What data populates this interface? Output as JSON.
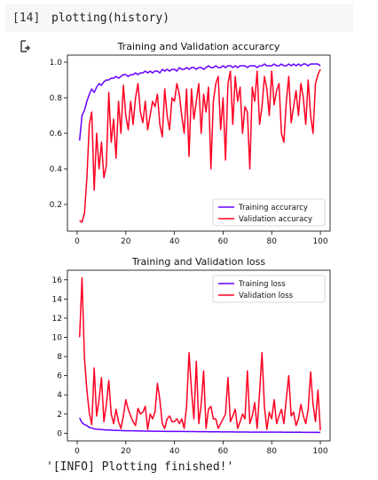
{
  "cell": {
    "prompt": "[14]",
    "code": "plotting(history)",
    "output_text": "'[INFO] Plotting finished!'"
  },
  "colors": {
    "train": "#6600ff",
    "val": "#ff0022"
  },
  "chart_data": [
    {
      "type": "line",
      "title": "Training and Validation accurarcy",
      "xlabel": "",
      "ylabel": "",
      "xlim": [
        -4,
        104
      ],
      "ylim": [
        0.05,
        1.04
      ],
      "xticks": [
        0,
        20,
        40,
        60,
        80,
        100
      ],
      "yticks": [
        0.2,
        0.4,
        0.6,
        0.8,
        1.0
      ],
      "xtick_labels": [
        "0",
        "20",
        "40",
        "60",
        "80",
        "100"
      ],
      "ytick_labels": [
        "0.2",
        "0.4",
        "0.6",
        "0.8",
        "1.0"
      ],
      "legend": "lower-right",
      "x_start": 1,
      "series": [
        {
          "name": "Training accurarcy",
          "color": "#6600ff",
          "values": [
            0.56,
            0.7,
            0.73,
            0.78,
            0.82,
            0.85,
            0.83,
            0.86,
            0.88,
            0.87,
            0.89,
            0.9,
            0.9,
            0.91,
            0.91,
            0.92,
            0.91,
            0.92,
            0.93,
            0.93,
            0.92,
            0.93,
            0.93,
            0.94,
            0.93,
            0.94,
            0.94,
            0.95,
            0.94,
            0.95,
            0.94,
            0.95,
            0.95,
            0.94,
            0.96,
            0.95,
            0.96,
            0.95,
            0.96,
            0.96,
            0.95,
            0.97,
            0.96,
            0.96,
            0.97,
            0.96,
            0.97,
            0.97,
            0.96,
            0.97,
            0.97,
            0.96,
            0.97,
            0.98,
            0.97,
            0.97,
            0.98,
            0.97,
            0.97,
            0.98,
            0.97,
            0.98,
            0.98,
            0.97,
            0.98,
            0.97,
            0.98,
            0.98,
            0.98,
            0.97,
            0.98,
            0.98,
            0.98,
            0.97,
            0.98,
            0.98,
            0.99,
            0.98,
            0.98,
            0.98,
            0.99,
            0.98,
            0.98,
            0.99,
            0.98,
            0.98,
            0.99,
            0.98,
            0.99,
            0.98,
            0.99,
            0.98,
            0.99,
            0.99,
            0.98,
            0.99,
            0.99,
            0.99,
            0.99,
            0.98
          ]
        },
        {
          "name": "Validation accuracy",
          "color": "#ff0022",
          "values": [
            0.11,
            0.1,
            0.15,
            0.35,
            0.65,
            0.72,
            0.28,
            0.6,
            0.4,
            0.55,
            0.35,
            0.42,
            0.83,
            0.55,
            0.68,
            0.46,
            0.78,
            0.6,
            0.87,
            0.7,
            0.62,
            0.78,
            0.65,
            0.8,
            0.88,
            0.72,
            0.66,
            0.78,
            0.62,
            0.7,
            0.78,
            0.75,
            0.82,
            0.65,
            0.58,
            0.85,
            0.7,
            0.62,
            0.8,
            0.78,
            0.88,
            0.82,
            0.7,
            0.6,
            0.85,
            0.47,
            0.85,
            0.68,
            0.78,
            0.88,
            0.6,
            0.82,
            0.72,
            0.86,
            0.4,
            0.78,
            0.88,
            0.92,
            0.62,
            0.8,
            0.45,
            0.88,
            0.95,
            0.65,
            0.92,
            0.78,
            0.86,
            0.6,
            0.75,
            0.72,
            0.4,
            0.86,
            0.78,
            0.95,
            0.65,
            0.75,
            0.92,
            0.85,
            0.7,
            0.95,
            0.76,
            0.84,
            0.88,
            0.6,
            0.55,
            0.78,
            0.92,
            0.66,
            0.75,
            0.84,
            0.7,
            0.88,
            0.8,
            0.65,
            0.9,
            0.7,
            0.6,
            0.88,
            0.93,
            0.96
          ]
        }
      ]
    },
    {
      "type": "line",
      "title": "Training and Validation loss",
      "xlabel": "",
      "ylabel": "",
      "xlim": [
        -4,
        104
      ],
      "ylim": [
        -0.8,
        17.0
      ],
      "xticks": [
        0,
        20,
        40,
        60,
        80,
        100
      ],
      "yticks": [
        0,
        2,
        4,
        6,
        8,
        10,
        12,
        14,
        16
      ],
      "xtick_labels": [
        "0",
        "20",
        "40",
        "60",
        "80",
        "100"
      ],
      "ytick_labels": [
        "0",
        "2",
        "4",
        "6",
        "8",
        "10",
        "12",
        "14",
        "16"
      ],
      "legend": "top-right",
      "x_start": 1,
      "series": [
        {
          "name": "Training loss",
          "color": "#6600ff",
          "values": [
            1.6,
            1.1,
            0.9,
            0.8,
            0.6,
            0.55,
            0.45,
            0.42,
            0.4,
            0.38,
            0.36,
            0.34,
            0.33,
            0.32,
            0.3,
            0.3,
            0.29,
            0.28,
            0.27,
            0.26,
            0.26,
            0.25,
            0.25,
            0.24,
            0.24,
            0.23,
            0.23,
            0.22,
            0.22,
            0.22,
            0.21,
            0.21,
            0.21,
            0.2,
            0.2,
            0.2,
            0.19,
            0.19,
            0.19,
            0.19,
            0.18,
            0.18,
            0.18,
            0.18,
            0.17,
            0.17,
            0.17,
            0.17,
            0.16,
            0.16,
            0.16,
            0.16,
            0.16,
            0.15,
            0.15,
            0.15,
            0.15,
            0.15,
            0.14,
            0.14,
            0.14,
            0.14,
            0.14,
            0.14,
            0.13,
            0.13,
            0.13,
            0.13,
            0.13,
            0.13,
            0.12,
            0.12,
            0.12,
            0.12,
            0.12,
            0.12,
            0.12,
            0.11,
            0.11,
            0.11,
            0.11,
            0.11,
            0.11,
            0.11,
            0.1,
            0.1,
            0.1,
            0.1,
            0.1,
            0.1,
            0.1,
            0.1,
            0.09,
            0.09,
            0.09,
            0.09,
            0.09,
            0.09,
            0.09,
            0.08
          ]
        },
        {
          "name": "Validation loss",
          "color": "#ff0022",
          "values": [
            10.0,
            16.2,
            7.8,
            4.5,
            2.1,
            0.9,
            6.8,
            1.8,
            3.5,
            5.8,
            1.2,
            3.0,
            5.5,
            2.0,
            1.0,
            2.5,
            1.2,
            0.5,
            1.8,
            3.5,
            2.5,
            1.8,
            1.2,
            0.8,
            2.6,
            2.0,
            2.2,
            2.8,
            0.4,
            2.0,
            1.5,
            2.2,
            5.2,
            3.5,
            1.0,
            0.5,
            1.5,
            1.8,
            1.2,
            1.2,
            1.5,
            1.0,
            1.5,
            0.5,
            2.8,
            8.4,
            4.5,
            1.5,
            7.5,
            1.0,
            3.0,
            6.5,
            0.5,
            2.5,
            2.8,
            1.5,
            1.5,
            0.5,
            1.0,
            1.5,
            2.0,
            5.8,
            1.2,
            1.8,
            2.5,
            0.5,
            1.2,
            2.0,
            1.5,
            6.5,
            1.0,
            1.8,
            3.2,
            0.5,
            4.2,
            8.4,
            2.8,
            0.4,
            2.2,
            1.5,
            3.5,
            1.0,
            1.8,
            2.5,
            1.0,
            3.6,
            6.0,
            1.8,
            2.2,
            0.8,
            1.5,
            3.0,
            1.8,
            1.0,
            2.5,
            6.4,
            3.0,
            1.2,
            4.5,
            0.3
          ]
        }
      ]
    }
  ]
}
